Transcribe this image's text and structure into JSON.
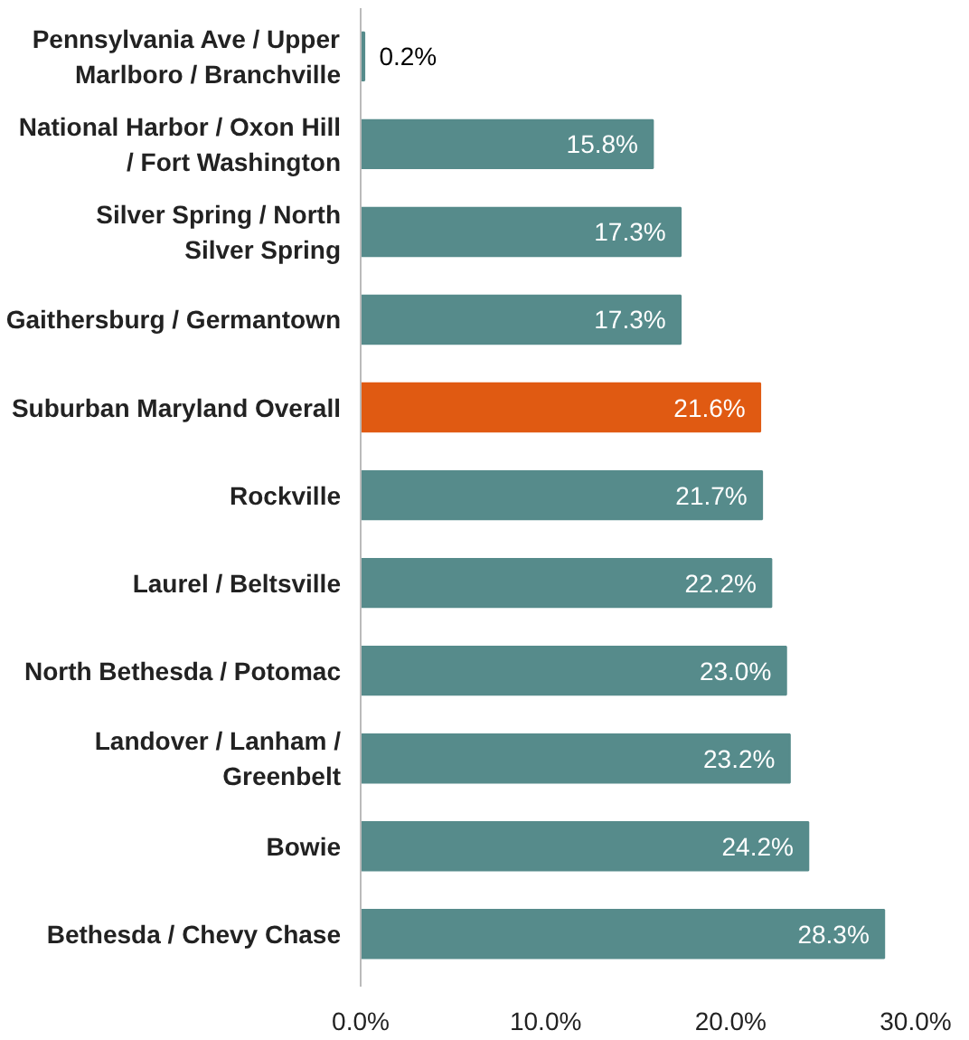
{
  "chart_data": {
    "type": "bar",
    "orientation": "horizontal",
    "categories": [
      "Pennsylvania Ave / Upper Marlboro / Branchville",
      "National Harbor / Oxon Hill / Fort Washington",
      "Silver Spring / North Silver Spring",
      "Gaithersburg / Germantown",
      "Suburban Maryland Overall",
      "Rockville",
      "Laurel / Beltsville",
      "North Bethesda / Potomac",
      "Landover / Lanham / Greenbelt",
      "Bowie",
      "Bethesda / Chevy Chase"
    ],
    "values": [
      0.2,
      15.8,
      17.3,
      17.3,
      21.6,
      21.7,
      22.2,
      23.0,
      23.2,
      24.2,
      28.3
    ],
    "value_labels": [
      "0.2%",
      "15.8%",
      "17.3%",
      "17.3%",
      "21.6%",
      "21.7%",
      "22.2%",
      "23.0%",
      "23.2%",
      "24.2%",
      "28.3%"
    ],
    "colors": [
      "#568b8b",
      "#568b8b",
      "#568b8b",
      "#568b8b",
      "#e05a12",
      "#568b8b",
      "#568b8b",
      "#568b8b",
      "#568b8b",
      "#568b8b",
      "#568b8b"
    ],
    "xlim": [
      0,
      30
    ],
    "xticks": [
      {
        "value": 0,
        "label": "0.0%"
      },
      {
        "value": 10,
        "label": "10.0%"
      },
      {
        "value": 20,
        "label": "20.0%"
      },
      {
        "value": 30,
        "label": "30.0%"
      }
    ],
    "grid": false
  }
}
